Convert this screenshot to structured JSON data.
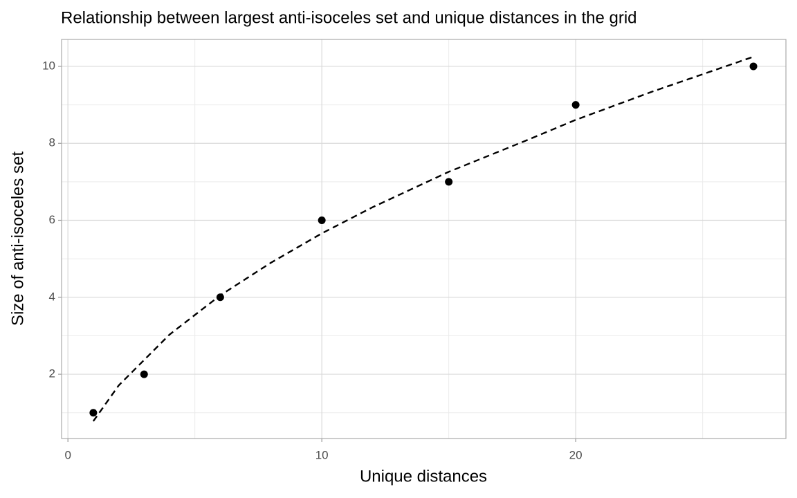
{
  "chart_data": {
    "type": "scatter",
    "title": "Relationship between largest anti-isoceles set and unique distances in the grid",
    "x_label": "Unique distances",
    "y_label": "Size of anti-isoceles set",
    "points": {
      "x": [
        1,
        3,
        6,
        10,
        15,
        20,
        27
      ],
      "values": [
        1,
        2,
        4,
        6,
        7,
        9,
        10
      ],
      "color": "#000000"
    },
    "fit": {
      "x": [
        1,
        2,
        4,
        6,
        8,
        10,
        12,
        15,
        18,
        20,
        23,
        27
      ],
      "values": [
        0.78,
        1.71,
        3.03,
        4.05,
        4.9,
        5.66,
        6.34,
        7.26,
        8.06,
        8.61,
        9.34,
        10.25
      ],
      "color": "#000000",
      "dashed": true
    },
    "xlim": [
      -0.25,
      28.28
    ],
    "ylim": [
      0.33,
      10.7
    ],
    "xticks": [
      0,
      10,
      20
    ],
    "yticks": [
      2,
      4,
      6,
      8,
      10
    ],
    "xminor": [
      5,
      15,
      25
    ],
    "yminor": [
      1,
      3,
      5,
      7,
      9
    ],
    "grid": true
  }
}
